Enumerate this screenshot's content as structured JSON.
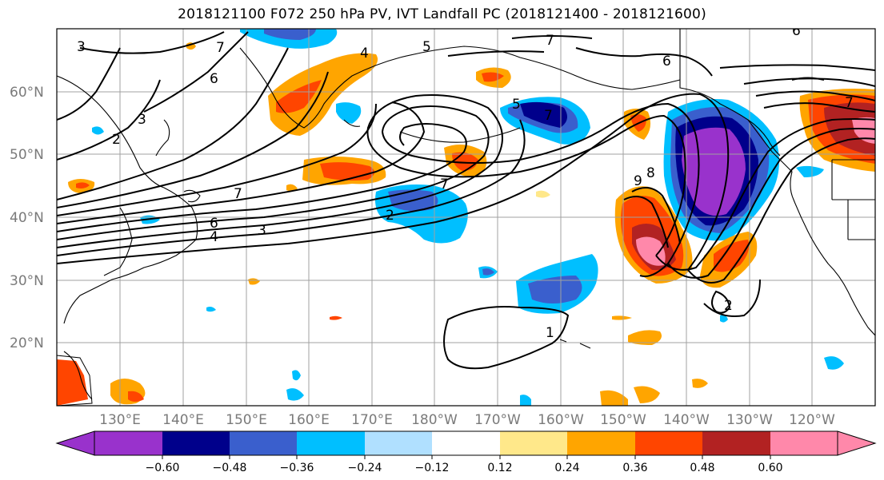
{
  "title": "2018121100 F072 250 hPa PV, IVT Landfall PC (2018121400 - 2018121600)",
  "lat_labels": [
    "60°N",
    "50°N",
    "40°N",
    "30°N",
    "20°N"
  ],
  "lon_labels": [
    "130°E",
    "140°E",
    "150°E",
    "160°E",
    "170°E",
    "180°W",
    "170°W",
    "160°W",
    "150°W",
    "140°W",
    "130°W",
    "120°W"
  ],
  "colorbar": {
    "ticks": [
      "−0.60",
      "−0.48",
      "−0.36",
      "−0.24",
      "−0.12",
      "0.12",
      "0.24",
      "0.36",
      "0.48",
      "0.60"
    ],
    "colors": [
      "#9932cc",
      "#00008b",
      "#3a5fcd",
      "#00bfff",
      "#b0e0ff",
      "#ffffff",
      "#ffe88a",
      "#ffa500",
      "#ff4500",
      "#b22222",
      "#ff88aa"
    ]
  },
  "contour_labels": [
    "3",
    "7",
    "6",
    "4",
    "5",
    "7",
    "6",
    "2",
    "7",
    "3",
    "4",
    "6",
    "7",
    "2",
    "5",
    "7",
    "3",
    "8",
    "9",
    "1",
    "2",
    "7",
    "6"
  ]
}
